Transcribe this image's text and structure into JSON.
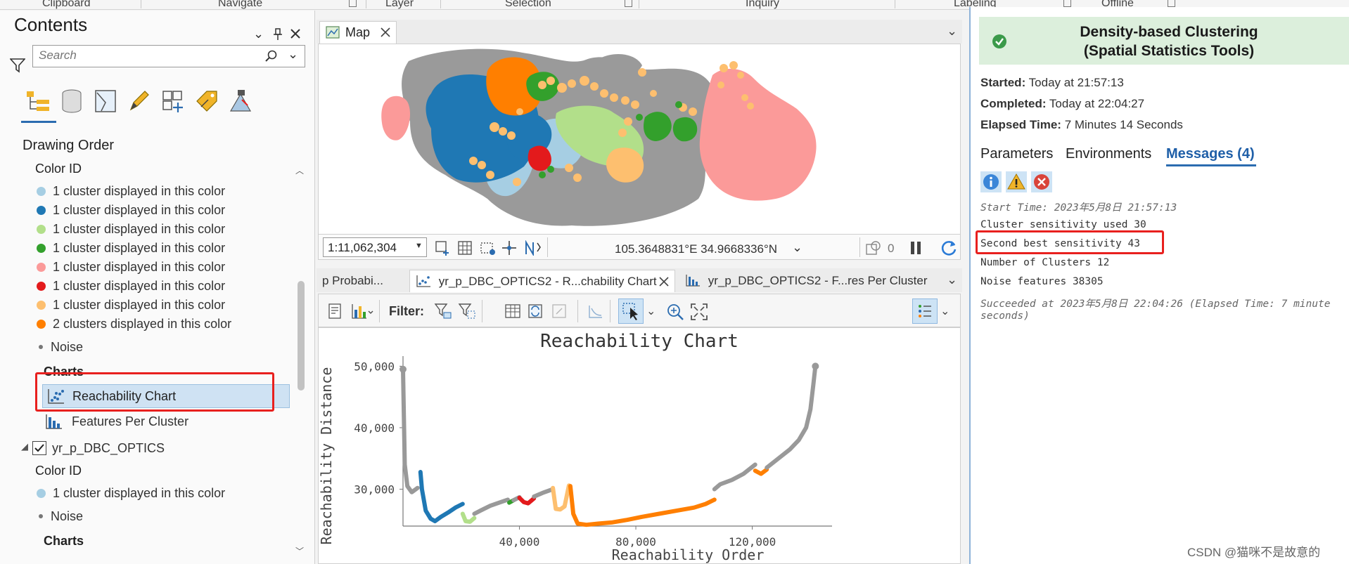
{
  "ribbon": {
    "groups": [
      "Clipboard",
      "Navigate",
      "Layer",
      "Selection",
      "Inquiry",
      "Labeling",
      "Offline"
    ]
  },
  "contents": {
    "title": "Contents",
    "search_placeholder": "Search",
    "drawing_order": "Drawing Order",
    "group1": {
      "color_id_label": "Color ID",
      "items": [
        {
          "label": "1 cluster displayed in this color",
          "color": "#a6cee3"
        },
        {
          "label": "1 cluster displayed in this color",
          "color": "#1f78b4"
        },
        {
          "label": "1 cluster displayed in this color",
          "color": "#b2df8a"
        },
        {
          "label": "1 cluster displayed in this color",
          "color": "#33a02c"
        },
        {
          "label": "1 cluster displayed in this color",
          "color": "#fb9a99"
        },
        {
          "label": "1 cluster displayed in this color",
          "color": "#e31a1c"
        },
        {
          "label": "1 cluster displayed in this color",
          "color": "#fdbf6f"
        },
        {
          "label": "2 clusters displayed in this color",
          "color": "#ff7f00"
        }
      ],
      "noise_label": "Noise",
      "charts_label": "Charts",
      "chart_items": [
        "Reachability Chart",
        "Features Per Cluster"
      ]
    },
    "layer2": {
      "name": "yr_p_DBC_OPTICS",
      "color_id_label": "Color ID",
      "items": [
        {
          "label": "1 cluster displayed in this color",
          "color": "#a6cee3"
        }
      ],
      "noise_label": "Noise",
      "charts_label": "Charts"
    }
  },
  "map": {
    "tab_label": "Map",
    "scale": "1:11,062,304",
    "coords": "105.3648831°E 34.9668336°N",
    "selection_count": "0"
  },
  "chart_tabs": [
    "p Probabi...",
    "yr_p_DBC_OPTICS2 - R...chability Chart",
    "yr_p_DBC_OPTICS2 - F...res Per Cluster"
  ],
  "chart_toolbar": {
    "filter_label": "Filter:"
  },
  "chart_data": {
    "type": "line",
    "title": "Reachability Chart",
    "xlabel": "Reachability Order",
    "ylabel": "Reachability Distance",
    "xlim": [
      0,
      145000
    ],
    "ylim": [
      24000,
      50500
    ],
    "x_ticks": [
      40000,
      80000,
      120000
    ],
    "x_tick_labels": [
      "40,000",
      "80,000",
      "120,000"
    ],
    "y_ticks": [
      30000,
      40000,
      50000
    ],
    "y_tick_labels": [
      "30,000",
      "40,000",
      "50,000"
    ],
    "grid": false,
    "series": [
      {
        "color": "#999999",
        "x": [
          0,
          600,
          1500,
          3000,
          5000
        ],
        "y": [
          49500,
          34000,
          30500,
          29500,
          30200
        ]
      },
      {
        "color": "#1f78b4",
        "x": [
          6000,
          6500,
          7800,
          9500,
          11000,
          13000,
          15500,
          18000,
          20500
        ],
        "y": [
          32800,
          30000,
          26500,
          25200,
          24800,
          25500,
          26200,
          27000,
          27600
        ]
      },
      {
        "color": "#b2df8a",
        "x": [
          20500,
          21500,
          23000,
          24500
        ],
        "y": [
          26000,
          24800,
          24700,
          25300
        ]
      },
      {
        "color": "#999999",
        "x": [
          24500,
          27000,
          30000,
          33000,
          36000
        ],
        "y": [
          26000,
          26600,
          27300,
          27800,
          28300
        ]
      },
      {
        "color": "#33a02c",
        "x": [
          36500,
          38000
        ],
        "y": [
          27800,
          28200
        ]
      },
      {
        "color": "#999999",
        "x": [
          38000,
          40000
        ],
        "y": [
          28200,
          28700
        ]
      },
      {
        "color": "#e31a1c",
        "x": [
          40000,
          41500,
          43000,
          45000
        ],
        "y": [
          28600,
          27900,
          27700,
          28500
        ]
      },
      {
        "color": "#999999",
        "x": [
          45000,
          48000,
          51500
        ],
        "y": [
          28800,
          29400,
          30000
        ]
      },
      {
        "color": "#fdbf6f",
        "x": [
          51500,
          52500,
          54000,
          55500,
          57000
        ],
        "y": [
          30200,
          26800,
          26700,
          27200,
          30600
        ]
      },
      {
        "color": "#ff7f00",
        "x": [
          57500,
          58500,
          60000,
          63000,
          67000,
          72000,
          77000,
          82000,
          88000,
          94000,
          100000,
          104000,
          107000
        ],
        "y": [
          30500,
          26000,
          24400,
          24200,
          24400,
          24600,
          25000,
          25500,
          26000,
          26500,
          27000,
          27600,
          28300
        ]
      },
      {
        "color": "#999999",
        "x": [
          107000,
          109000,
          113000,
          117000,
          121000
        ],
        "y": [
          30000,
          30800,
          31500,
          32500,
          34000
        ]
      },
      {
        "color": "#ff7f00",
        "x": [
          121000,
          123000,
          125000
        ],
        "y": [
          33000,
          32500,
          33200
        ]
      },
      {
        "color": "#999999",
        "x": [
          125000,
          129000,
          133000,
          136000,
          138500,
          140000,
          141000,
          141700
        ],
        "y": [
          33500,
          35000,
          36500,
          38000,
          40000,
          43000,
          47000,
          50000
        ]
      }
    ]
  },
  "gp": {
    "title_line1": "Density-based Clustering",
    "title_line2": "(Spatial Statistics Tools)",
    "started_label": "Started:",
    "started_value": "Today at 21:57:13",
    "completed_label": "Completed:",
    "completed_value": "Today at 22:04:27",
    "elapsed_label": "Elapsed Time:",
    "elapsed_value": "7 Minutes 14 Seconds",
    "tabs": [
      "Parameters",
      "Environments",
      "Messages (4)"
    ],
    "messages": [
      "Start Time: 2023年5月8日 21:57:13",
      "Cluster sensitivity used 30",
      "Second best sensitivity 43",
      "Number of Clusters 12",
      "Noise features 38305",
      "Succeeded at 2023年5月8日 22:04:26 (Elapsed Time: 7 minute",
      "seconds)"
    ]
  },
  "watermark": "CSDN @猫咪不是故意的"
}
